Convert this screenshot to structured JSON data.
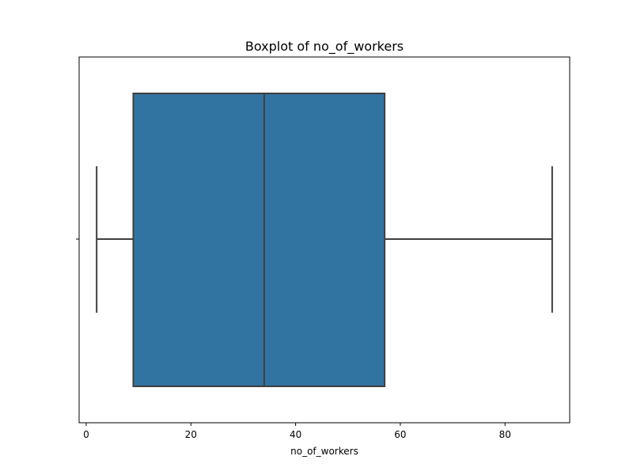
{
  "chart_data": {
    "type": "box",
    "title": "Boxplot of no_of_workers",
    "xlabel": "no_of_workers",
    "ylabel": "",
    "xlim": [
      -1.35,
      92.35
    ],
    "xticks": [
      0,
      20,
      40,
      60,
      80
    ],
    "orientation": "horizontal",
    "grid": false,
    "box": {
      "whisker_low": 2,
      "q1": 9,
      "median": 34,
      "q3": 57,
      "whisker_high": 89
    },
    "colors": {
      "box_fill": "#3274a1",
      "line": "#3f3f3f"
    }
  }
}
